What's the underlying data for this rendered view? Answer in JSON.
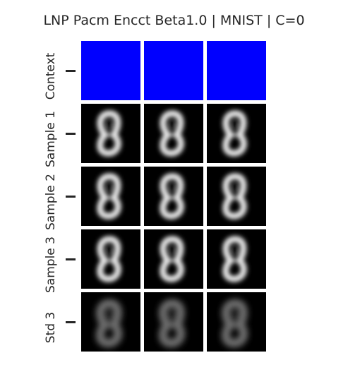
{
  "title": "LNP Pacm Encct Beta1.0 | MNIST | C=0",
  "rows": [
    {
      "label": "Context",
      "kind": "context"
    },
    {
      "label": "Sample 1",
      "kind": "sample"
    },
    {
      "label": "Sample 2",
      "kind": "sample"
    },
    {
      "label": "Sample 3",
      "kind": "sample"
    },
    {
      "label": "Std 3",
      "kind": "std"
    }
  ],
  "columns": 3,
  "colors": {
    "context_fill": "#0000ff",
    "background": "#000000",
    "sample_stroke": "#e8e8e8",
    "std_stroke": "#6e6e6e",
    "text": "#262626"
  }
}
